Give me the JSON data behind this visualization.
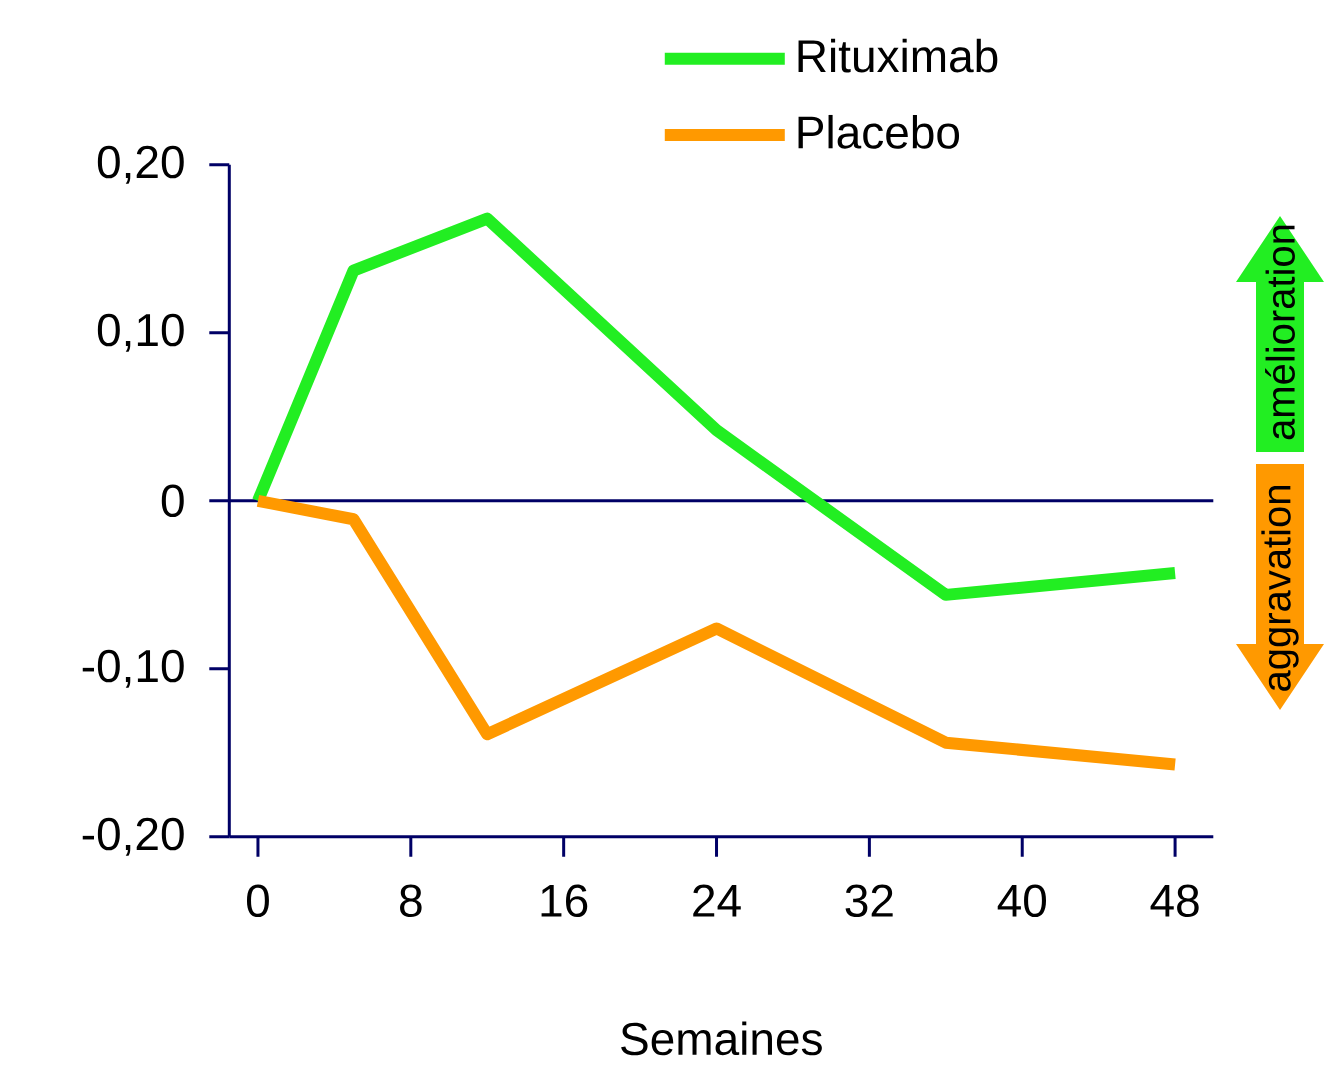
{
  "chart_data": {
    "type": "line",
    "xlabel": "Semaines",
    "x": [
      0,
      5,
      12,
      24,
      36,
      48
    ],
    "series": [
      {
        "name": "Rituximab",
        "color": "#22ee22",
        "values": [
          0,
          0.137,
          0.168,
          0.042,
          -0.056,
          -0.043
        ]
      },
      {
        "name": "Placebo",
        "color": "#ff9900",
        "values": [
          0,
          -0.011,
          -0.139,
          -0.076,
          -0.144,
          -0.157
        ]
      }
    ],
    "xlim": [
      -1.5,
      50
    ],
    "ylim": [
      -0.2,
      0.2
    ],
    "xticks": [
      0,
      8,
      16,
      24,
      32,
      40,
      48
    ],
    "yticks": [
      {
        "value": -0.2,
        "label": "-0,20"
      },
      {
        "value": -0.1,
        "label": "-0,10"
      },
      0,
      {
        "value": 0.1,
        "label": "0,10"
      },
      {
        "value": 0.2,
        "label": "0,20"
      }
    ],
    "ref_lines": [
      {
        "axis": "y",
        "value": 0,
        "color": "#000066"
      }
    ],
    "annotations": [
      "amélioration",
      "aggravation"
    ],
    "legend": "top right",
    "grid": false,
    "marker": "none",
    "line_style": "solid"
  }
}
